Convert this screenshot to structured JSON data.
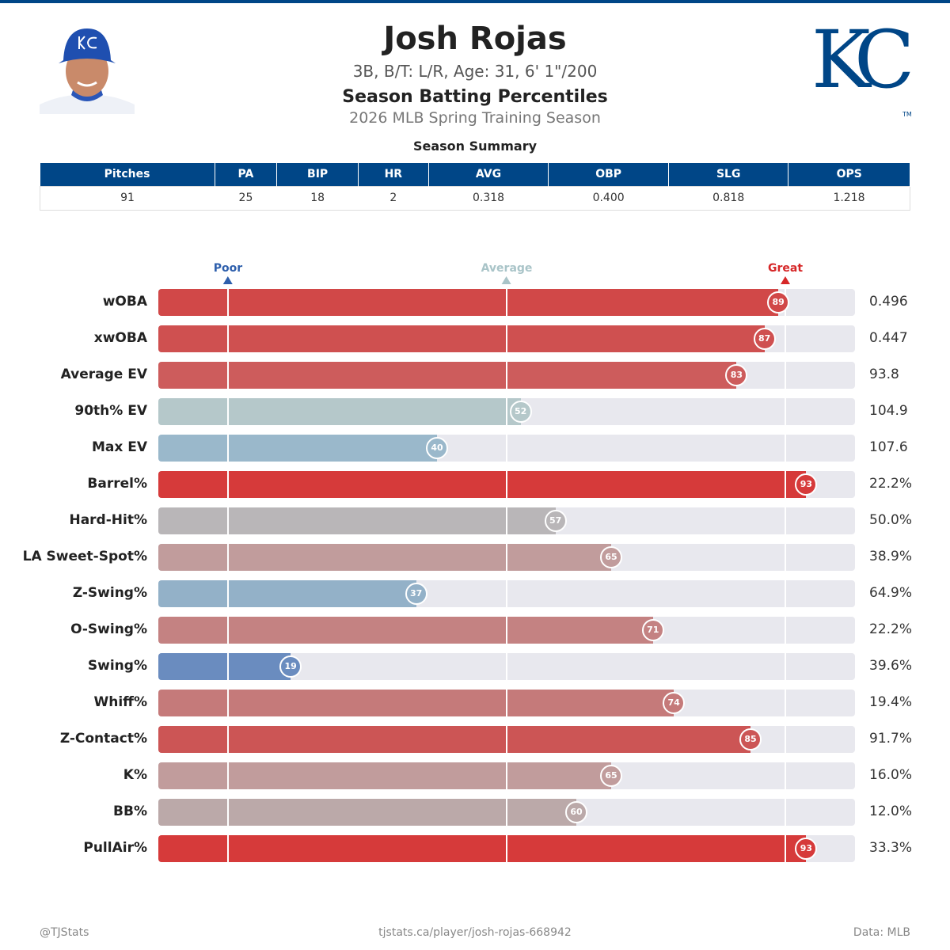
{
  "header": {
    "name": "Josh Rojas",
    "bio": "3B, B/T: L/R, Age: 31, 6' 1\"/200",
    "title": "Season Batting Percentiles",
    "season": "2026 MLB Spring Training Season",
    "logo_text": "KC",
    "logo_tm": "TM",
    "brand_color": "#004687"
  },
  "summary": {
    "title": "Season Summary",
    "headers": [
      "Pitches",
      "PA",
      "BIP",
      "HR",
      "AVG",
      "OBP",
      "SLG",
      "OPS"
    ],
    "values": [
      "91",
      "25",
      "18",
      "2",
      "0.318",
      "0.400",
      "0.818",
      "1.218"
    ]
  },
  "scale": {
    "poor": "Poor",
    "average": "Average",
    "great": "Great",
    "poor_pct": 10,
    "average_pct": 50,
    "great_pct": 90,
    "poor_color": "#2e5fac",
    "average_color": "#a9c4c8",
    "great_color": "#d62728"
  },
  "metrics": [
    {
      "label": "wOBA",
      "percentile": 89,
      "value": "0.496",
      "color": "#d14848"
    },
    {
      "label": "xwOBA",
      "percentile": 87,
      "value": "0.447",
      "color": "#cf5050"
    },
    {
      "label": "Average EV",
      "percentile": 83,
      "value": "93.8",
      "color": "#cd5c5c"
    },
    {
      "label": "90th% EV",
      "percentile": 52,
      "value": "104.9",
      "color": "#b5c8ca"
    },
    {
      "label": "Max EV",
      "percentile": 40,
      "value": "107.6",
      "color": "#9ab8cb"
    },
    {
      "label": "Barrel%",
      "percentile": 93,
      "value": "22.2%",
      "color": "#d63a3a"
    },
    {
      "label": "Hard-Hit%",
      "percentile": 57,
      "value": "50.0%",
      "color": "#b9b6b8"
    },
    {
      "label": "LA Sweet-Spot%",
      "percentile": 65,
      "value": "38.9%",
      "color": "#c19c9c"
    },
    {
      "label": "Z-Swing%",
      "percentile": 37,
      "value": "64.9%",
      "color": "#93b1c8"
    },
    {
      "label": "O-Swing%",
      "percentile": 71,
      "value": "22.2%",
      "color": "#c48282"
    },
    {
      "label": "Swing%",
      "percentile": 19,
      "value": "39.6%",
      "color": "#6a8cbf"
    },
    {
      "label": "Whiff%",
      "percentile": 74,
      "value": "19.4%",
      "color": "#c57a7a"
    },
    {
      "label": "Z-Contact%",
      "percentile": 85,
      "value": "91.7%",
      "color": "#cc5555"
    },
    {
      "label": "K%",
      "percentile": 65,
      "value": "16.0%",
      "color": "#c19c9c"
    },
    {
      "label": "BB%",
      "percentile": 60,
      "value": "12.0%",
      "color": "#bba9a9"
    },
    {
      "label": "PullAir%",
      "percentile": 93,
      "value": "33.3%",
      "color": "#d63a3a"
    }
  ],
  "footer": {
    "left": "@TJStats",
    "center": "tjstats.ca/player/josh-rojas-668942",
    "right": "Data: MLB"
  }
}
